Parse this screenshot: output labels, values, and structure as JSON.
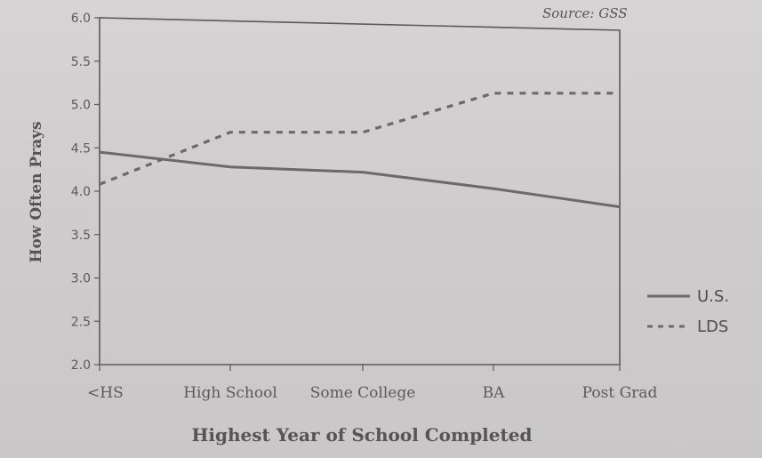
{
  "chart_data": {
    "type": "line",
    "title": "",
    "source": "Source: GSS",
    "xlabel": "Highest Year of School Completed",
    "ylabel": "How Often Prays",
    "categories": [
      "<HS",
      "High School",
      "Some College",
      "BA",
      "Post Grad"
    ],
    "ylim": [
      2.0,
      6.0
    ],
    "yticks": [
      "2.0",
      "2.5",
      "3.0",
      "3.5",
      "4.0",
      "4.5",
      "5.0",
      "5.5",
      "6.0"
    ],
    "grid": false,
    "legend": "right",
    "series": [
      {
        "name": "U.S.",
        "style": "solid",
        "values": [
          4.45,
          4.28,
          4.22,
          4.03,
          3.82
        ]
      },
      {
        "name": "LDS",
        "style": "dashed",
        "values": [
          4.08,
          4.68,
          4.68,
          5.13,
          5.13
        ]
      }
    ]
  },
  "colors": {
    "line": "#6a6a6a",
    "axis": "#5a5a5a"
  }
}
